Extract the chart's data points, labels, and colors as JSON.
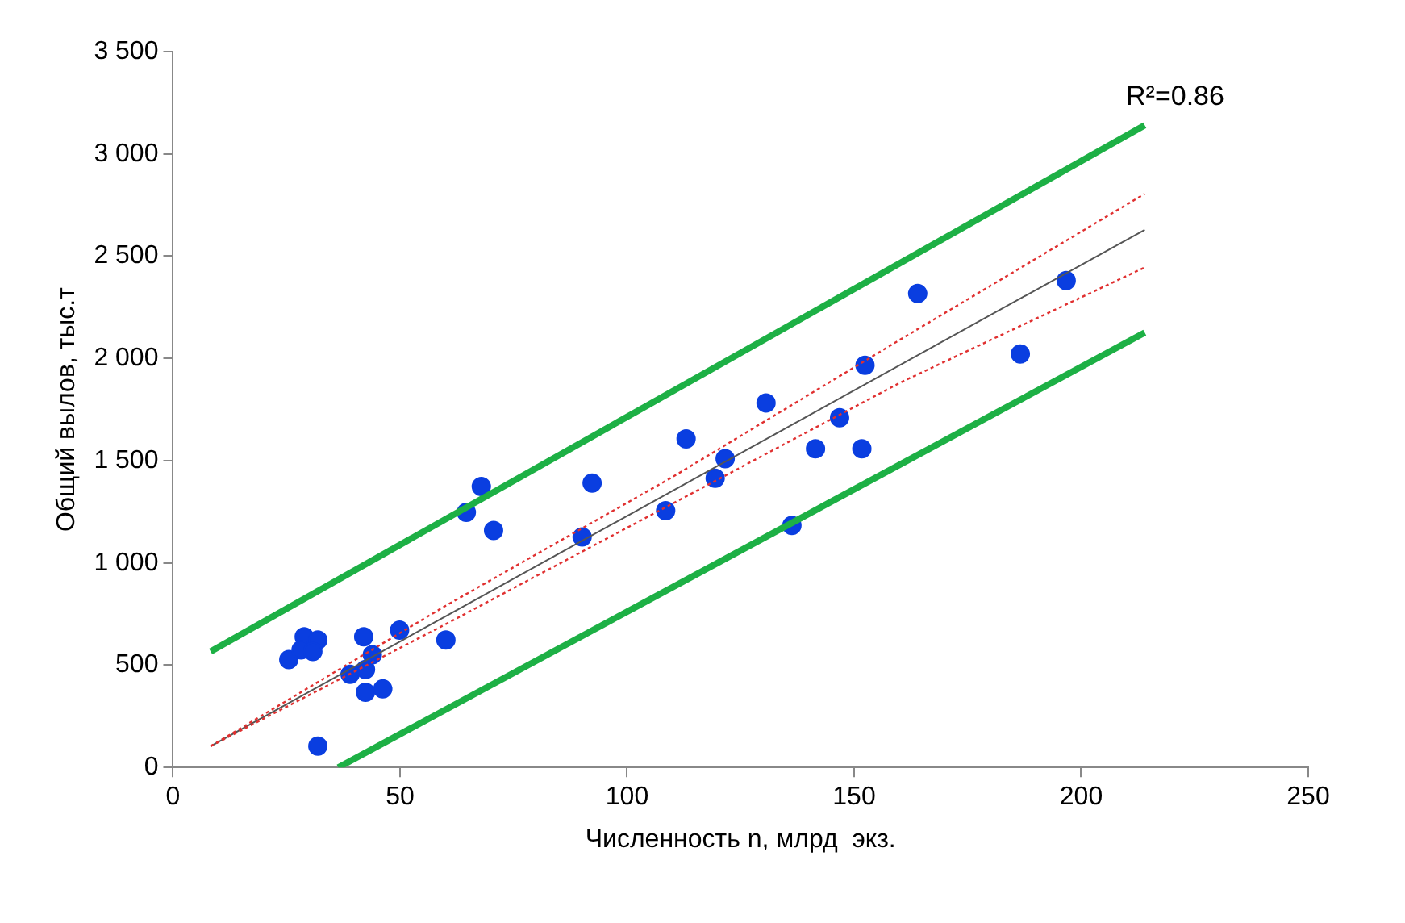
{
  "chart_data": {
    "type": "scatter",
    "xlabel": "Численность n, млрд  экз.",
    "ylabel": "Общий вылов, тыс.т",
    "annotations": [
      "R²=0.86"
    ],
    "xlim": [
      0,
      250
    ],
    "xticks": [
      0,
      50,
      100,
      150,
      200,
      250
    ],
    "ylim": [
      0,
      3500
    ],
    "yticks": [
      0,
      {
        "value": 500,
        "label": "500"
      },
      {
        "value": 1000,
        "label": "1 000"
      },
      {
        "value": 1500,
        "label": "1 500"
      },
      {
        "value": 2000,
        "label": "2 000"
      },
      {
        "value": 2500,
        "label": "2 500"
      },
      {
        "value": 3000,
        "label": "3 000"
      },
      {
        "value": 3500,
        "label": "3 500"
      }
    ],
    "grid": false,
    "legend": false,
    "series": [
      {
        "type": "scatter",
        "marker": "circle",
        "color": "#0a3ee0",
        "x": [
          25.5,
          28.9,
          28.2,
          31.9,
          30.8,
          31.9,
          39.0,
          42.0,
          42.4,
          42.4,
          43.9,
          46.2,
          49.9,
          60.1,
          64.6,
          67.9,
          70.6,
          90.1,
          92.3,
          108.5,
          113.0,
          119.4,
          121.6,
          130.6,
          136.3,
          141.5,
          146.8,
          151.7,
          152.4,
          164.0,
          186.6,
          196.7
        ],
        "values": [
          527,
          639,
          575,
          623,
          567,
          104,
          455,
          639,
          479,
          368,
          551,
          384,
          671,
          623,
          1247,
          1374,
          1159,
          1127,
          1390,
          1255,
          1606,
          1414,
          1510,
          1782,
          1183,
          1558,
          1710,
          1558,
          1966,
          2317,
          2022,
          2381
        ]
      },
      {
        "type": "line",
        "marker": "none",
        "color": "#555555",
        "line_style": "solid",
        "x": [
          8.3,
          214
        ],
        "values": [
          104,
          2629
        ]
      },
      {
        "type": "line",
        "color": "#e03030",
        "line_style": "dotted",
        "x": [
          8.3,
          60,
          110,
          160,
          214
        ],
        "values": [
          104,
          790,
          1420,
          2090,
          2805
        ],
        "marker": "none"
      },
      {
        "type": "line",
        "color": "#e03030",
        "line_style": "dotted",
        "x": [
          8.3,
          60,
          110,
          160,
          214
        ],
        "values": [
          104,
          700,
          1290,
          1880,
          2445
        ],
        "marker": "none"
      },
      {
        "type": "line",
        "color": "#1db045",
        "line_style": "solid",
        "x": [
          8.3,
          214
        ],
        "values": [
          567,
          3140
        ],
        "marker": "none"
      },
      {
        "type": "line",
        "color": "#1db045",
        "line_style": "solid",
        "x": [
          36.4,
          214
        ],
        "values": [
          0,
          2126
        ],
        "marker": "none"
      }
    ]
  }
}
